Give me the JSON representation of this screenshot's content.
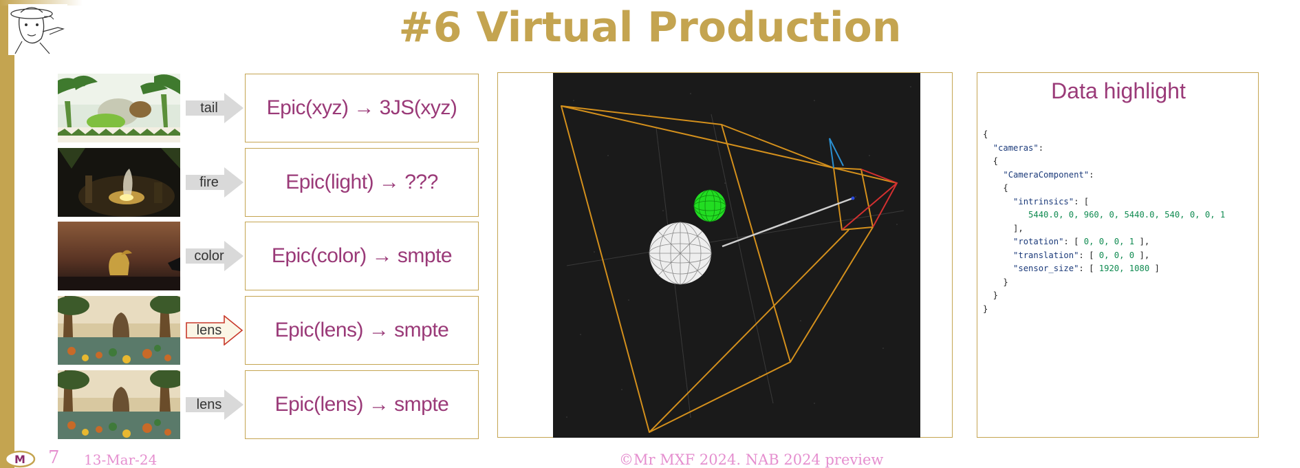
{
  "slide": {
    "title": "#6 Virtual Production",
    "page_number": "7",
    "date": "13-Mar-24",
    "copyright": "©Mr MXF 2024. NAB 2024 preview",
    "footer_logo_letter": "M"
  },
  "rows": [
    {
      "label": "tail",
      "mapping": "Epic(xyz) → 3JS(xyz)",
      "highlighted": false
    },
    {
      "label": "fire",
      "mapping": "Epic(light) → ???",
      "highlighted": false
    },
    {
      "label": "color",
      "mapping": "Epic(color) → smpte",
      "highlighted": false
    },
    {
      "label": "lens",
      "mapping": "Epic(lens) → smpte",
      "highlighted": true
    },
    {
      "label": "lens",
      "mapping": "Epic(lens) → smpte",
      "highlighted": false
    }
  ],
  "data_panel": {
    "title": "Data highlight",
    "code": {
      "root_key": "\"cameras\"",
      "component_key": "\"CameraComponent\"",
      "intrinsics_key": "\"intrinsics\"",
      "intrinsics_values": "5440.0, 0, 960, 0, 5440.0, 540, 0, 0, 1",
      "rotation_key": "\"rotation\"",
      "rotation_values": "0, 0, 0, 1",
      "translation_key": "\"translation\"",
      "translation_values": "0, 0, 0",
      "sensor_key": "\"sensor_size\"",
      "sensor_values": "1920, 1080"
    }
  },
  "colors": {
    "accent_gold": "#c4a450",
    "mapping_text": "#9a3a78",
    "footer_pink": "#e58fcf",
    "frustum_orange": "#d4901c",
    "sphere_green": "#22dd22"
  }
}
